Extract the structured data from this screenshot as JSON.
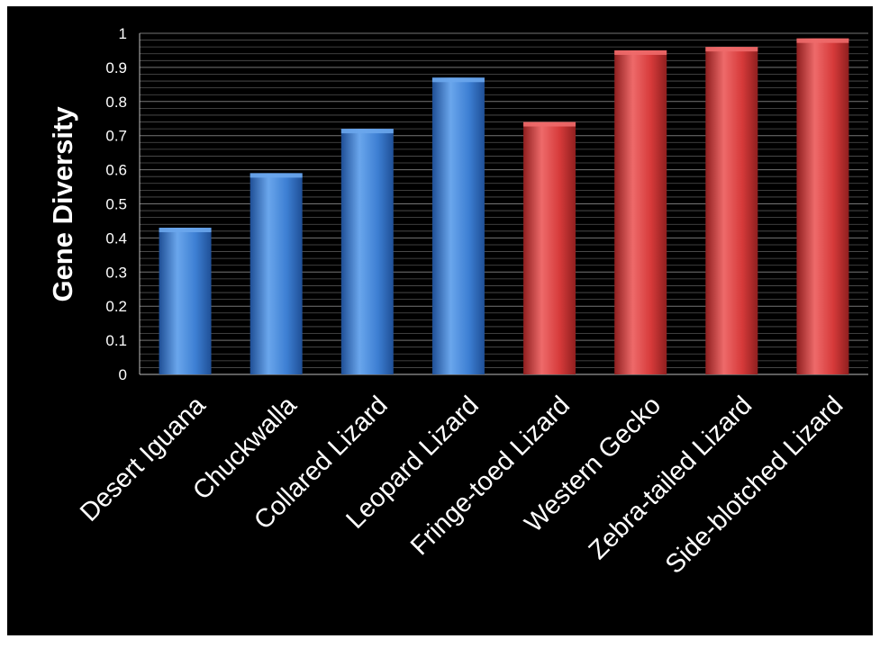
{
  "chart_data": {
    "type": "bar",
    "ylabel": "Gene Diversity",
    "xlabel": "",
    "ylim": [
      0,
      1
    ],
    "yticks": [
      "0",
      "0.1",
      "0.2",
      "0.3",
      "0.4",
      "0.5",
      "0.6",
      "0.7",
      "0.8",
      "0.9",
      "1"
    ],
    "categories": [
      "Desert Iguana",
      "Chuckwalla",
      "Collared Lizard",
      "Leopard Lizard",
      "Fringe-toed Lizard",
      "Western Gecko",
      "Zebra-tailed Lizard",
      "Side-blotched Lizard"
    ],
    "values": [
      0.43,
      0.59,
      0.72,
      0.87,
      0.74,
      0.95,
      0.96,
      0.985
    ],
    "groups": [
      "blue",
      "blue",
      "blue",
      "blue",
      "red",
      "red",
      "red",
      "red"
    ],
    "colors": {
      "blue_light": "#6aa6ec",
      "blue": "#3d7fd3",
      "blue_dark": "#1f4f96",
      "red_light": "#ee6a6a",
      "red": "#d63a3a",
      "red_dark": "#8f1f1f",
      "grid": "#8a8a8a",
      "background": "#000000",
      "text": "#ffffff"
    },
    "grid": true,
    "legend": "none"
  }
}
